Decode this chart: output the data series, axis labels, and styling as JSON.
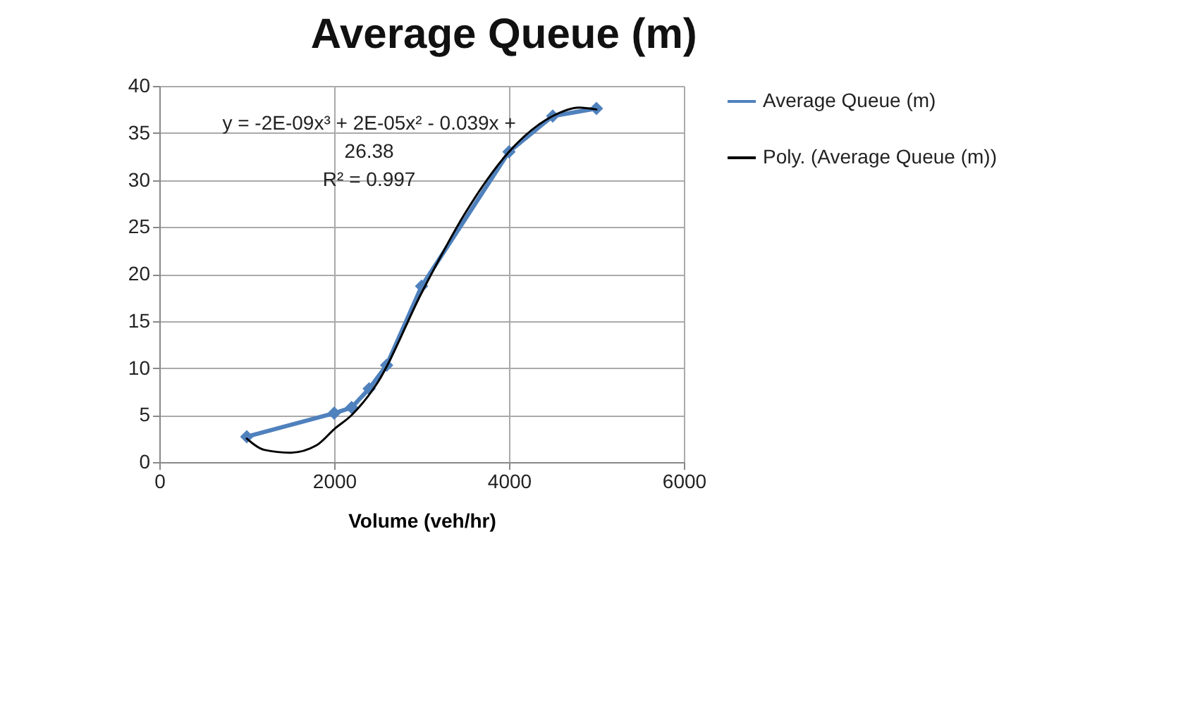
{
  "chart_data": {
    "type": "line",
    "title": "Average Queue (m)",
    "xlabel": "Volume (veh/hr)",
    "xlim": [
      0,
      6000
    ],
    "xticks": [
      0,
      2000,
      4000,
      6000
    ],
    "ylim": [
      0,
      40
    ],
    "yticks": [
      0,
      5,
      10,
      15,
      20,
      25,
      30,
      35,
      40
    ],
    "grid": true,
    "legend": "right",
    "marker": "diamond",
    "series": [
      {
        "name": "Average Queue (m)",
        "color": "#4f81bd",
        "x": [
          1000,
          2000,
          2200,
          2400,
          2600,
          3000,
          4000,
          4500,
          5000
        ],
        "values": [
          2.7,
          5.2,
          5.8,
          7.8,
          10.3,
          18.7,
          33,
          36.8,
          37.6
        ]
      },
      {
        "name": "Poly. (Average Queue (m))",
        "color": "#000000",
        "marker": "none",
        "x": [
          1000,
          1200,
          1500,
          1800,
          2000,
          2200,
          2500,
          3000,
          3500,
          4000,
          4500,
          4800,
          5000
        ],
        "values": [
          2.5,
          1.3,
          1.0,
          1.8,
          3.5,
          5.0,
          8.5,
          18,
          26.5,
          33,
          36.8,
          37.7,
          37.5
        ]
      }
    ],
    "annotations": [
      "y = -2E-09x³ + 2E-05x² - 0.039x + 26.38",
      "R² = 0.997"
    ]
  }
}
